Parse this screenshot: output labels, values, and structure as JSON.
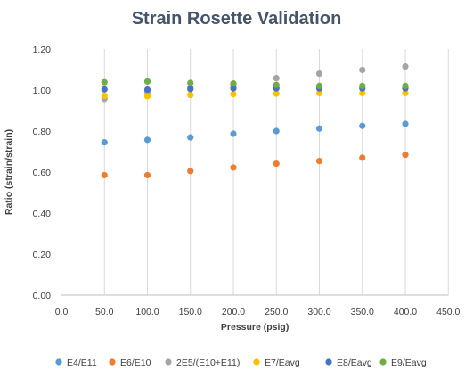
{
  "chart_data": {
    "type": "scatter",
    "title": "Strain Rosette Validation",
    "xlabel": "Pressure (psig)",
    "ylabel": "Ratio (strain/strain)",
    "xlim": [
      0,
      450
    ],
    "ylim": [
      0,
      1.2
    ],
    "x_ticks": [
      "0.0",
      "50.0",
      "100.0",
      "150.0",
      "200.0",
      "250.0",
      "300.0",
      "350.0",
      "400.0",
      "450.0"
    ],
    "y_ticks": [
      "0.00",
      "0.20",
      "0.40",
      "0.60",
      "0.80",
      "1.00",
      "1.20"
    ],
    "grid": "vertical",
    "legend_position": "bottom",
    "x": [
      50,
      100,
      150,
      200,
      250,
      300,
      350,
      400
    ],
    "series": [
      {
        "name": "E4/E11",
        "color": "#5b9bd5",
        "values": [
          0.745,
          0.757,
          0.769,
          0.787,
          0.8,
          0.812,
          0.825,
          0.835
        ]
      },
      {
        "name": "E6/E10",
        "color": "#ed7d31",
        "values": [
          0.585,
          0.585,
          0.605,
          0.622,
          0.641,
          0.654,
          0.67,
          0.684
        ]
      },
      {
        "name": "2E5/(E10+E11)",
        "color": "#a5a5a5",
        "values": [
          0.957,
          0.99,
          1.01,
          1.025,
          1.058,
          1.08,
          1.098,
          1.115
        ]
      },
      {
        "name": "E7/Eavg",
        "color": "#ffc000",
        "values": [
          0.972,
          0.97,
          0.976,
          0.98,
          0.982,
          0.985,
          0.985,
          0.985
        ]
      },
      {
        "name": "E8/Eavg",
        "color": "#4472c4",
        "values": [
          1.003,
          1.002,
          1.005,
          1.008,
          1.008,
          1.008,
          1.008,
          1.008
        ]
      },
      {
        "name": "E9/Eavg",
        "color": "#70ad47",
        "values": [
          1.038,
          1.042,
          1.035,
          1.032,
          1.025,
          1.02,
          1.02,
          1.02
        ]
      }
    ]
  }
}
